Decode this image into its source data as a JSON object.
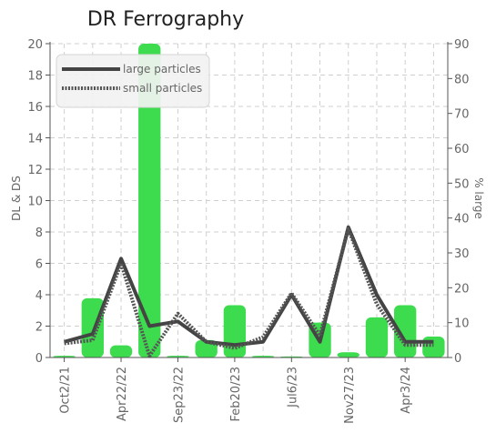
{
  "chart_data": {
    "type": "bar+line",
    "title": "DR Ferrography",
    "ylabel_left": "DL & DS",
    "ylabel_right": "% large",
    "ylim_left": [
      0,
      20
    ],
    "ylim_right": [
      0,
      90
    ],
    "y_ticks_left": [
      "0",
      "2",
      "4",
      "6",
      "8",
      "10",
      "12",
      "14",
      "16",
      "18",
      "20"
    ],
    "y_ticks_right": [
      "0",
      "10",
      "20",
      "30",
      "40",
      "50",
      "60",
      "70",
      "80",
      "90"
    ],
    "x_tick_labels": [
      "Oct2/21",
      "Apr22/22",
      "Sep23/22",
      "Feb20/23",
      "Jul6/23",
      "Nov27/23",
      "Apr3/24"
    ],
    "grid": true,
    "legend_position": "top-left",
    "bar_color": "#3ddc4e",
    "bars_pct_large": [
      0.5,
      17,
      3.5,
      90,
      0.5,
      5,
      15,
      0.5,
      0.3,
      10,
      1.5,
      11.5,
      15,
      6
    ],
    "series": [
      {
        "name": "large particles",
        "style": "solid",
        "color": "#444444",
        "values": [
          1,
          1.5,
          6.3,
          2,
          2.3,
          1,
          0.8,
          1,
          4,
          1,
          8.3,
          4,
          1,
          1
        ]
      },
      {
        "name": "small particles",
        "style": "dotted",
        "color": "#555555",
        "values": [
          0.9,
          1.1,
          6,
          0.1,
          2.8,
          1,
          0.6,
          1.3,
          4.1,
          1.4,
          8.2,
          3.4,
          0.8,
          0.8
        ]
      }
    ]
  }
}
